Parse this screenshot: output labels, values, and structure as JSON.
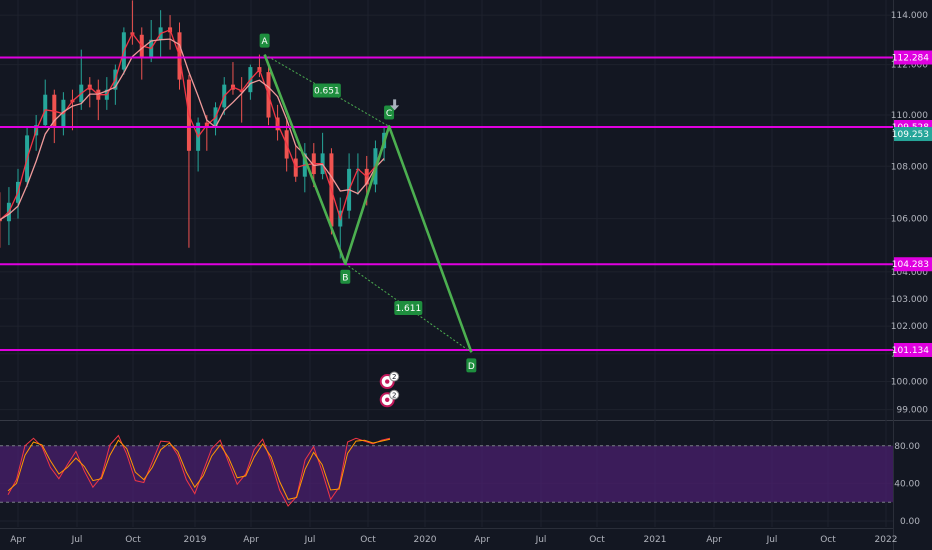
{
  "chart_data": [
    {
      "type": "candlestick",
      "x_axis": {
        "tick_labels": [
          "Apr",
          "Jul",
          "Oct",
          "2019",
          "Apr",
          "Jul",
          "Oct",
          "2020",
          "Apr",
          "Jul",
          "Oct",
          "2021",
          "Apr",
          "Jul",
          "Oct",
          "2022"
        ],
        "tick_dates": [
          "2018-04-01",
          "2018-07-01",
          "2018-10-01",
          "2019-01-01",
          "2019-04-01",
          "2019-07-01",
          "2019-10-01",
          "2020-01-01",
          "2020-04-01",
          "2020-07-01",
          "2020-10-01",
          "2021-01-01",
          "2021-04-01",
          "2021-07-01",
          "2021-10-01",
          "2022-01-01"
        ],
        "range": [
          "2018-02-10",
          "2022-02-10"
        ]
      },
      "y_axis": {
        "scale": "log",
        "tick_labels": [
          "99.000",
          "100.000",
          "101.000",
          "102.000",
          "103.000",
          "104.000",
          "106.000",
          "108.000",
          "110.000",
          "112.000",
          "114.000"
        ],
        "tick_values": [
          99,
          100,
          101,
          102,
          103,
          104,
          106,
          108,
          110,
          112,
          114
        ],
        "range": [
          98.55,
          114.6
        ]
      },
      "grid": true,
      "ohlc_weekly_approx": [
        [
          "2018-02-18",
          106.6,
          107.6,
          104.5,
          106.0
        ],
        [
          "2018-03-04",
          106.0,
          107.0,
          104.9,
          105.9
        ],
        [
          "2018-03-18",
          105.9,
          107.2,
          105.0,
          106.6
        ],
        [
          "2018-04-01",
          106.6,
          107.9,
          106.0,
          107.4
        ],
        [
          "2018-04-15",
          107.4,
          109.5,
          107.2,
          109.2
        ],
        [
          "2018-04-29",
          109.2,
          110.0,
          108.6,
          109.6
        ],
        [
          "2018-05-13",
          109.6,
          111.4,
          109.5,
          110.8
        ],
        [
          "2018-05-27",
          110.8,
          111.0,
          108.9,
          109.5
        ],
        [
          "2018-06-10",
          109.5,
          110.9,
          109.2,
          110.6
        ],
        [
          "2018-06-24",
          110.6,
          111.0,
          109.4,
          110.5
        ],
        [
          "2018-07-08",
          110.5,
          112.6,
          110.2,
          111.2
        ],
        [
          "2018-07-22",
          111.2,
          111.5,
          110.3,
          111.0
        ],
        [
          "2018-08-05",
          111.0,
          111.4,
          109.8,
          110.6
        ],
        [
          "2018-08-19",
          110.6,
          111.5,
          110.2,
          111.0
        ],
        [
          "2018-09-02",
          111.0,
          112.0,
          110.4,
          111.8
        ],
        [
          "2018-09-16",
          111.8,
          113.5,
          111.6,
          113.3
        ],
        [
          "2018-09-30",
          113.3,
          114.6,
          112.8,
          113.2
        ],
        [
          "2018-10-14",
          113.2,
          113.5,
          111.4,
          112.3
        ],
        [
          "2018-10-28",
          112.3,
          113.8,
          112.1,
          113.0
        ],
        [
          "2018-11-11",
          113.0,
          114.2,
          112.3,
          113.5
        ],
        [
          "2018-11-25",
          113.5,
          114.0,
          112.6,
          113.3
        ],
        [
          "2018-12-09",
          113.3,
          113.7,
          111.0,
          111.4
        ],
        [
          "2018-12-23",
          111.4,
          111.6,
          104.9,
          108.6
        ],
        [
          "2019-01-06",
          108.6,
          109.9,
          107.8,
          109.7
        ],
        [
          "2019-01-20",
          109.7,
          110.0,
          108.6,
          109.5
        ],
        [
          "2019-02-03",
          109.5,
          110.5,
          109.2,
          110.3
        ],
        [
          "2019-02-17",
          110.3,
          111.5,
          110.0,
          111.2
        ],
        [
          "2019-03-03",
          111.2,
          112.1,
          110.8,
          111.0
        ],
        [
          "2019-03-17",
          111.0,
          111.5,
          109.7,
          110.9
        ],
        [
          "2019-03-31",
          110.9,
          112.0,
          110.6,
          111.9
        ],
        [
          "2019-04-14",
          111.9,
          112.4,
          111.5,
          111.7
        ],
        [
          "2019-04-28",
          111.7,
          111.9,
          109.6,
          109.9
        ],
        [
          "2019-05-12",
          109.9,
          110.4,
          109.0,
          109.4
        ],
        [
          "2019-05-26",
          109.4,
          109.9,
          107.8,
          108.3
        ],
        [
          "2019-06-09",
          108.3,
          108.8,
          107.4,
          107.6
        ],
        [
          "2019-06-23",
          107.6,
          108.9,
          107.0,
          108.5
        ],
        [
          "2019-07-07",
          108.5,
          108.9,
          107.2,
          107.7
        ],
        [
          "2019-07-21",
          107.7,
          109.3,
          107.5,
          108.5
        ],
        [
          "2019-08-04",
          108.5,
          108.7,
          105.4,
          105.7
        ],
        [
          "2019-08-18",
          105.7,
          106.8,
          104.5,
          106.3
        ],
        [
          "2019-09-01",
          106.3,
          108.5,
          106.0,
          107.9
        ],
        [
          "2019-09-15",
          107.9,
          108.5,
          106.9,
          107.9
        ],
        [
          "2019-09-29",
          107.9,
          108.4,
          106.5,
          107.3
        ],
        [
          "2019-10-13",
          107.3,
          109.0,
          107.0,
          108.7
        ],
        [
          "2019-10-27",
          108.7,
          109.5,
          108.2,
          109.3
        ]
      ],
      "indicators": [
        {
          "type": "moving-average",
          "color": "#f23645"
        },
        {
          "type": "moving-average",
          "color": "#ef9a9a"
        }
      ],
      "horizontal_levels": [
        {
          "value": 112.284,
          "label": "112.284",
          "color": "#e000e0"
        },
        {
          "value": 109.528,
          "label": "109.528",
          "color": "#e000e0"
        },
        {
          "value": 104.283,
          "label": "104.283",
          "color": "#e000e0"
        },
        {
          "value": 101.134,
          "label": "101.134",
          "color": "#e000e0"
        }
      ],
      "last_price": {
        "value": 109.253,
        "label": "109.253",
        "color": "#26a69a"
      },
      "abcd_pattern": {
        "color": "#4caf50",
        "points": [
          {
            "label": "A",
            "date": "2019-04-22",
            "value": 112.4
          },
          {
            "label": "B",
            "date": "2019-08-26",
            "value": 104.3
          },
          {
            "label": "C",
            "date": "2019-11-04",
            "value": 109.55
          },
          {
            "label": "D",
            "date": "2020-03-15",
            "value": 101.05
          }
        ],
        "ratios": [
          {
            "label": "0.651",
            "between": [
              "A",
              "C"
            ]
          },
          {
            "label": "1.611",
            "between": [
              "B",
              "D"
            ]
          }
        ]
      },
      "markers": [
        {
          "type": "down-arrow",
          "date": "2019-11-13",
          "value": 110.3,
          "color": "#a9b2bd"
        },
        {
          "type": "event-badge",
          "date": "2019-11-01",
          "value": 100.0,
          "count": "2"
        },
        {
          "type": "event-badge",
          "date": "2019-11-01",
          "value": 99.35,
          "count": "2"
        }
      ]
    },
    {
      "type": "line",
      "indicator": "stochastic",
      "y_axis": {
        "tick_labels": [
          "0.00",
          "40.00",
          "80.00"
        ],
        "tick_values": [
          0,
          40,
          80
        ],
        "range": [
          -3,
          103
        ]
      },
      "band": {
        "lower": 20,
        "upper": 80,
        "color": "#4a1f6e"
      },
      "series": [
        {
          "color": "#f23645",
          "values": [
            28,
            44,
            80,
            88,
            79,
            57,
            45,
            60,
            74,
            53,
            36,
            47,
            81,
            91,
            71,
            43,
            41,
            63,
            85,
            84,
            70,
            44,
            29,
            53,
            77,
            86,
            62,
            39,
            50,
            76,
            87,
            63,
            33,
            16,
            26,
            65,
            79,
            53,
            23,
            36,
            84,
            88,
            85,
            82,
            86,
            88
          ]
        },
        {
          "color": "#ff9800",
          "values": [
            32,
            40,
            70,
            84,
            81,
            64,
            50,
            57,
            67,
            58,
            43,
            45,
            70,
            86,
            77,
            52,
            44,
            57,
            76,
            83,
            74,
            52,
            36,
            48,
            69,
            81,
            67,
            46,
            48,
            68,
            82,
            68,
            42,
            23,
            25,
            55,
            73,
            60,
            33,
            34,
            72,
            85,
            86,
            83,
            85,
            87
          ]
        }
      ]
    }
  ]
}
